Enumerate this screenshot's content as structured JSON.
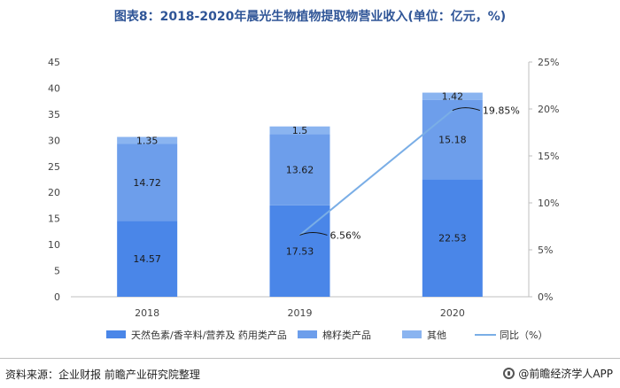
{
  "title": "图表8：2018-2020年晨光生物植物提取物营业收入(单位：亿元，%)",
  "footer": {
    "source": "资料来源：企业财报 前瞻产业研究院整理",
    "brand": "@前瞻经济学人APP"
  },
  "colors": {
    "series1": "#4a86e8",
    "series2": "#6d9eeb",
    "series3": "#8ab4f0",
    "line": "#7aaee6"
  },
  "chart_data": {
    "type": "bar",
    "stacked": true,
    "categories": [
      "2018",
      "2019",
      "2020"
    ],
    "series": [
      {
        "name": "天然色素/香辛料/营养及 药用类产品",
        "values": [
          14.57,
          17.53,
          22.53
        ]
      },
      {
        "name": "棉籽类产品",
        "values": [
          14.72,
          13.62,
          15.18
        ]
      },
      {
        "name": "其他",
        "values": [
          1.35,
          1.5,
          1.42
        ]
      }
    ],
    "line_series": {
      "name": "同比（%）",
      "values": [
        null,
        6.56,
        19.85
      ],
      "labels": [
        "",
        "6.56%",
        "19.85%"
      ]
    },
    "ylim": [
      0,
      45
    ],
    "yticks": [
      "0",
      "5",
      "10",
      "15",
      "20",
      "25",
      "30",
      "35",
      "40",
      "45"
    ],
    "y2lim": [
      0,
      25
    ],
    "y2ticks": [
      "0%",
      "5%",
      "10%",
      "15%",
      "20%",
      "25%"
    ],
    "legend_position": "bottom"
  }
}
